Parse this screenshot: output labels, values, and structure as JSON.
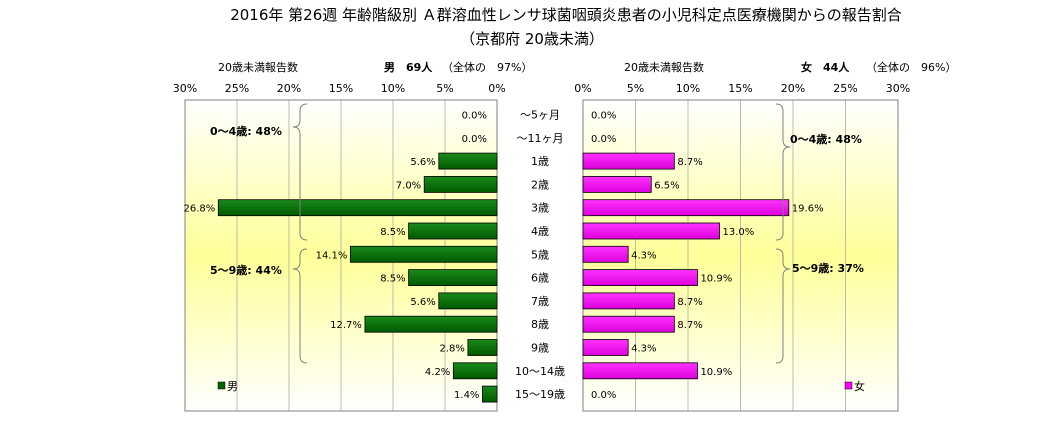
{
  "chart_data": {
    "type": "bar",
    "title": "2016年 第26週 年齢階級別 Ａ群溶血性レンサ球菌咽頭炎患者の小児科定点医療機関からの報告割合",
    "subtitle": "（京都府 20歳未満）",
    "categories": [
      "～5ヶ月",
      "～11ヶ月",
      "1歳",
      "2歳",
      "3歳",
      "4歳",
      "5歳",
      "6歳",
      "7歳",
      "8歳",
      "9歳",
      "10～14歳",
      "15～19歳"
    ],
    "tick_labels": [
      "0%",
      "5%",
      "10%",
      "15%",
      "20%",
      "25%",
      "30%"
    ],
    "xlim": [
      0,
      30
    ],
    "left_tick_labels": [
      "30%",
      "25%",
      "20%",
      "15%",
      "10%",
      "5%",
      "0%"
    ],
    "right_tick_labels": [
      "0%",
      "5%",
      "10%",
      "15%",
      "20%",
      "25%",
      "30%"
    ],
    "left_header": {
      "count_label": "20歳未満報告数",
      "sex_count": "男　69人",
      "share": "（全体の　97%）"
    },
    "right_header": {
      "count_label": "20歳未満報告数",
      "sex_count": "女　44人",
      "share": "（全体の　96%）"
    },
    "series": [
      {
        "name": "男",
        "color": "#006400",
        "values": [
          0.0,
          0.0,
          5.6,
          7.0,
          26.8,
          8.5,
          14.1,
          8.5,
          5.6,
          12.7,
          2.8,
          4.2,
          1.4
        ],
        "labels": [
          "0.0%",
          "0.0%",
          "5.6%",
          "7.0%",
          "26.8%",
          "8.5%",
          "14.1%",
          "8.5%",
          "5.6%",
          "12.7%",
          "2.8%",
          "4.2%",
          "1.4%"
        ]
      },
      {
        "name": "女",
        "color": "#FF00FF",
        "values": [
          0.0,
          0.0,
          8.7,
          6.5,
          19.6,
          13.0,
          4.3,
          10.9,
          8.7,
          8.7,
          4.3,
          10.9,
          0.0
        ],
        "labels": [
          "0.0%",
          "0.0%",
          "8.7%",
          "6.5%",
          "19.6%",
          "13.0%",
          "4.3%",
          "10.9%",
          "8.7%",
          "8.7%",
          "4.3%",
          "10.9%",
          "0.0%"
        ]
      }
    ],
    "group_annotations": {
      "male": [
        "0～4歳: 48%",
        "5～9歳: 44%"
      ],
      "female": [
        "0～4歳: 48%",
        "5～9歳: 37%"
      ]
    },
    "legend": [
      "男",
      "女"
    ],
    "grid": true,
    "background_gradient": [
      "#ffffff",
      "#ffff99"
    ]
  }
}
